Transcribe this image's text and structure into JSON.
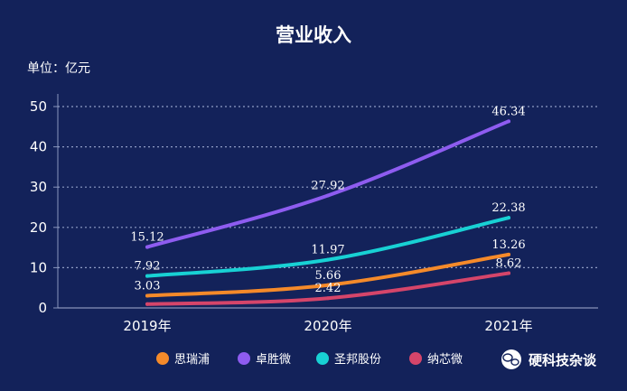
{
  "chart_data": {
    "type": "line",
    "title": "营业收入",
    "unit_label": "单位：亿元",
    "categories": [
      "2019年",
      "2020年",
      "2021年"
    ],
    "ylim": [
      0,
      50
    ],
    "yticks": [
      0,
      10,
      20,
      30,
      40,
      50
    ],
    "grid": "horizontal-dotted",
    "legend_position": "bottom-center",
    "series": [
      {
        "name": "思瑞浦",
        "color": "#f58a2a",
        "values": [
          3.03,
          5.66,
          13.26
        ]
      },
      {
        "name": "卓胜微",
        "color": "#8e5cf0",
        "values": [
          15.12,
          27.92,
          46.34
        ]
      },
      {
        "name": "圣邦股份",
        "color": "#18d1d4",
        "values": [
          7.92,
          11.97,
          22.38
        ]
      },
      {
        "name": "纳芯微",
        "color": "#d5456a",
        "values": [
          0.94,
          2.42,
          8.62
        ]
      }
    ],
    "data_labels": [
      {
        "series": 0,
        "index": 0,
        "text": "3.03"
      },
      {
        "series": 0,
        "index": 1,
        "text": "5.66"
      },
      {
        "series": 0,
        "index": 2,
        "text": "13.26"
      },
      {
        "series": 1,
        "index": 0,
        "text": "15.12"
      },
      {
        "series": 1,
        "index": 1,
        "text": "27.92"
      },
      {
        "series": 1,
        "index": 2,
        "text": "46.34"
      },
      {
        "series": 2,
        "index": 0,
        "text": "7.92"
      },
      {
        "series": 2,
        "index": 1,
        "text": "11.97"
      },
      {
        "series": 2,
        "index": 2,
        "text": "22.38"
      },
      {
        "series": 3,
        "index": 1,
        "text": "2.42"
      },
      {
        "series": 3,
        "index": 2,
        "text": "8.62"
      }
    ]
  },
  "watermark": {
    "text": "硬科技杂谈",
    "icon": "wechat-icon"
  }
}
